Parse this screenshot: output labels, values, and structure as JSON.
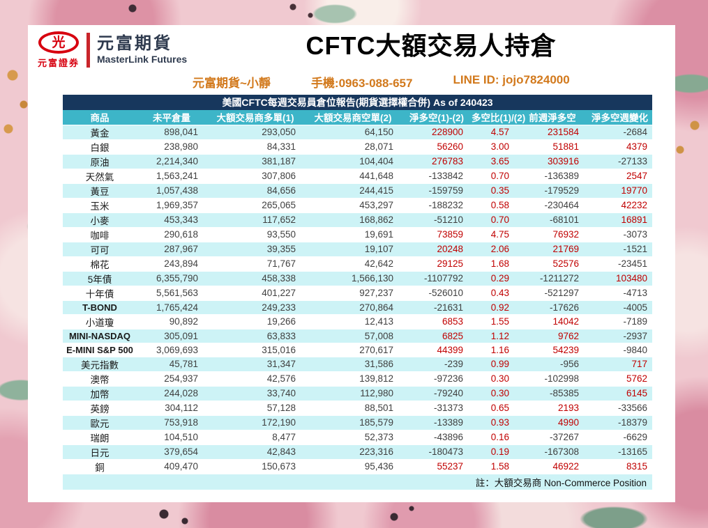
{
  "header": {
    "logo": {
      "mark_char": "光",
      "mark_sub": "元富證券",
      "brand_cn": "元富期貨",
      "brand_en": "MasterLink Futures"
    },
    "title": "CFTC大額交易人持倉",
    "contact": {
      "name": "元富期貨~小靜",
      "phone": "手機:0963-088-657",
      "line": "LINE ID: jojo7824000"
    }
  },
  "table": {
    "caption": "美國CFTC每週交易員倉位報告(期貨選擇權合併) As of 240423",
    "columns": [
      "商品",
      "未平倉量",
      "大額交易商多單(1)",
      "大額交易商空單(2)",
      "淨多空(1)-(2)",
      "多空比(1)/(2)",
      "前週淨多空",
      "淨多空週變化"
    ],
    "rows": [
      [
        "黃金",
        "898,041",
        "293,050",
        "64,150",
        "228900",
        "4.57",
        "231584",
        "-2684"
      ],
      [
        "白銀",
        "238,980",
        "84,331",
        "28,071",
        "56260",
        "3.00",
        "51881",
        "4379"
      ],
      [
        "原油",
        "2,214,340",
        "381,187",
        "104,404",
        "276783",
        "3.65",
        "303916",
        "-27133"
      ],
      [
        "天然氣",
        "1,563,241",
        "307,806",
        "441,648",
        "-133842",
        "0.70",
        "-136389",
        "2547"
      ],
      [
        "黃豆",
        "1,057,438",
        "84,656",
        "244,415",
        "-159759",
        "0.35",
        "-179529",
        "19770"
      ],
      [
        "玉米",
        "1,969,357",
        "265,065",
        "453,297",
        "-188232",
        "0.58",
        "-230464",
        "42232"
      ],
      [
        "小麥",
        "453,343",
        "117,652",
        "168,862",
        "-51210",
        "0.70",
        "-68101",
        "16891"
      ],
      [
        "咖啡",
        "290,618",
        "93,550",
        "19,691",
        "73859",
        "4.75",
        "76932",
        "-3073"
      ],
      [
        "可可",
        "287,967",
        "39,355",
        "19,107",
        "20248",
        "2.06",
        "21769",
        "-1521"
      ],
      [
        "棉花",
        "243,894",
        "71,767",
        "42,642",
        "29125",
        "1.68",
        "52576",
        "-23451"
      ],
      [
        "5年債",
        "6,355,790",
        "458,338",
        "1,566,130",
        "-1107792",
        "0.29",
        "-1211272",
        "103480"
      ],
      [
        "十年債",
        "5,561,563",
        "401,227",
        "927,237",
        "-526010",
        "0.43",
        "-521297",
        "-4713"
      ],
      [
        "T-BOND",
        "1,765,424",
        "249,233",
        "270,864",
        "-21631",
        "0.92",
        "-17626",
        "-4005"
      ],
      [
        "小道瓊",
        "90,892",
        "19,266",
        "12,413",
        "6853",
        "1.55",
        "14042",
        "-7189"
      ],
      [
        "MINI-NASDAQ",
        "305,091",
        "63,833",
        "57,008",
        "6825",
        "1.12",
        "9762",
        "-2937"
      ],
      [
        "E-MINI S&P 500",
        "3,069,693",
        "315,016",
        "270,617",
        "44399",
        "1.16",
        "54239",
        "-9840"
      ],
      [
        "美元指數",
        "45,781",
        "31,347",
        "31,586",
        "-239",
        "0.99",
        "-956",
        "717"
      ],
      [
        "澳幣",
        "254,937",
        "42,576",
        "139,812",
        "-97236",
        "0.30",
        "-102998",
        "5762"
      ],
      [
        "加幣",
        "244,028",
        "33,740",
        "112,980",
        "-79240",
        "0.30",
        "-85385",
        "6145"
      ],
      [
        "英鎊",
        "304,112",
        "57,128",
        "88,501",
        "-31373",
        "0.65",
        "2193",
        "-33566"
      ],
      [
        "歐元",
        "753,918",
        "172,190",
        "185,579",
        "-13389",
        "0.93",
        "4990",
        "-18379"
      ],
      [
        "瑞朗",
        "104,510",
        "8,477",
        "52,373",
        "-43896",
        "0.16",
        "-37267",
        "-6629"
      ],
      [
        "日元",
        "379,654",
        "42,843",
        "223,316",
        "-180473",
        "0.19",
        "-167308",
        "-13165"
      ],
      [
        "銅",
        "409,470",
        "150,673",
        "95,436",
        "55237",
        "1.58",
        "46922",
        "8315"
      ]
    ],
    "bold_rows": [
      12,
      14,
      15
    ],
    "footnote": "註：大額交易商 Non-Commerce Position"
  },
  "colors": {
    "caption_bar_bg": "#17375d",
    "header_row_bg": "#3db5c8",
    "row_stripe_bg": "#cdf3f6",
    "positive_red": "#c00000",
    "contact_orange": "#d2791c",
    "logo_red": "#d7000f",
    "brand_navy": "#2e3a4e"
  }
}
